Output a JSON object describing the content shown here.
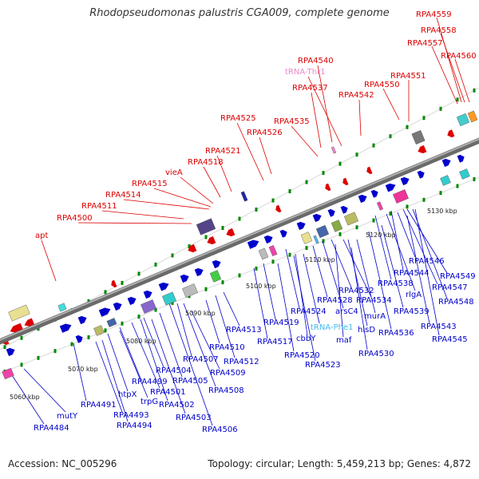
{
  "title": "Rhodopseudomonas palustris CGA009, complete genome",
  "footer": {
    "accession": "Accession: NC_005296",
    "summary": "Topology: circular; Length: 5,459,213 bp; Genes: 4,872"
  },
  "scale_labels": [
    "5060 kbp",
    "5070 kbp",
    "5080 kbp",
    "5090 kbp",
    "5100 kbp",
    "5110 kbp",
    "5120 kbp",
    "5130 kbp"
  ],
  "colors": {
    "reverse_strand_gene": "#dd0000",
    "forward_strand_gene": "#0000cc",
    "trna": "#ee88cc",
    "trna_forward": "#44bbee",
    "backbone": "#888888",
    "tick": "#008800"
  },
  "upper_labels": [
    "RPA4559",
    "RPA4558",
    "RPA4557",
    "RPA4560",
    "RPA4540",
    "tRNA-Thr1",
    "RPA4537",
    "RPA4551",
    "RPA4550",
    "RPA4542",
    "RPA4535",
    "RPA4525",
    "RPA4526",
    "RPA4521",
    "RPA4518",
    "vieA",
    "RPA4515",
    "RPA4514",
    "RPA4511",
    "RPA4500",
    "apt"
  ],
  "lower_labels": [
    "RPA4546",
    "RPA4549",
    "RPA4544",
    "rlgA",
    "RPA4547",
    "RPA4538",
    "RPA4548",
    "RPA4532",
    "RPA4528",
    "RPA4534",
    "RPA4539",
    "arsC4",
    "murA",
    "RPA4536",
    "RPA4543",
    "RPA4524",
    "RPA4519",
    "tRNA-Phe1",
    "hisD",
    "RPA4545",
    "RPA4513",
    "RPA4517",
    "cbbY",
    "maf",
    "RPA4520",
    "RPA4530",
    "RPA4510",
    "RPA4512",
    "RPA4507",
    "RPA4523",
    "RPA4509",
    "RPA4504",
    "RPA4499",
    "RPA4505",
    "RPA4508",
    "htpX",
    "RPA4501",
    "trpG",
    "RPA4502",
    "RPA4491",
    "RPA4493",
    "RPA4503",
    "RPA4494",
    "RPA4506",
    "mutY",
    "RPA4484"
  ]
}
